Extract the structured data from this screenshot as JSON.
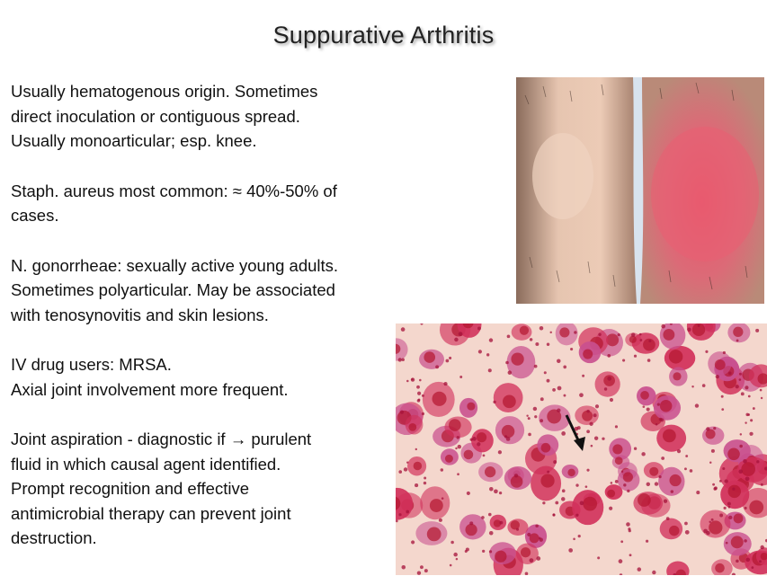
{
  "slide": {
    "title": "Suppurative Arthritis",
    "paragraphs": [
      {
        "lines": [
          "Usually hematogenous origin. Sometimes",
          "direct inoculation or contiguous spread.",
          "Usually monoarticular; esp. knee."
        ]
      },
      {
        "lines": [
          "Staph. aureus most common: ≈ 40%-50% of",
          "cases."
        ]
      },
      {
        "lines": [
          "N. gonorrheae: sexually active young adults.",
          "Sometimes polyarticular. May be associated",
          "with tenosynovitis and skin lesions."
        ]
      },
      {
        "lines": [
          "IV drug users: MRSA.",
          "Axial joint involvement  more frequent."
        ]
      },
      {
        "lines": [
          "Joint aspiration - diagnostic if → purulent",
          "fluid in which causal agent identified.",
          "Prompt recognition and effective",
          "antimicrobial therapy can prevent joint",
          "destruction."
        ]
      }
    ]
  },
  "colors": {
    "skin": "#e8c4ad",
    "inflamed": "#e05a6e",
    "smear_bg": "#f3d3c8",
    "neutrophil": "#d1305a",
    "nucleus": "#b4162f",
    "arrow": "#111111"
  }
}
